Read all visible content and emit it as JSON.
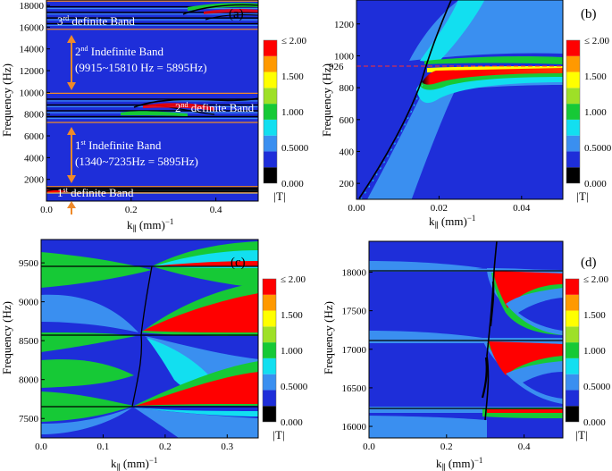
{
  "figure": {
    "colorbar": {
      "levels": [
        "≤ 2.00",
        "1.500",
        "1.000",
        "0.5000",
        "0.000"
      ],
      "unit": "|T|",
      "colors": [
        "#000000",
        "#1e2ed9",
        "#3a8ff0",
        "#12dff0",
        "#16c936",
        "#9ee027",
        "#ffff00",
        "#ff9900",
        "#ff0000"
      ]
    }
  },
  "chart_data": [
    {
      "type": "heatmap",
      "panel": "(a)",
      "xlabel": "k∥ (mm)⁻¹",
      "ylabel": "Frequency (Hz)",
      "xlim": [
        0,
        0.5
      ],
      "ylim": [
        0,
        18500
      ],
      "x_ticks": [
        "0.0",
        "0.2",
        "0.4"
      ],
      "y_ticks": [
        "2000",
        "4000",
        "6000",
        "8000",
        "10000",
        "12000",
        "14000",
        "16000",
        "18000"
      ],
      "bands": [
        {
          "kind": "definite",
          "freq": [
            750,
            1340
          ]
        },
        {
          "kind": "indefinite",
          "freq": [
            1340,
            7235
          ]
        },
        {
          "kind": "definite",
          "freq": [
            7235,
            9915
          ]
        },
        {
          "kind": "indefinite",
          "freq": [
            9915,
            15810
          ]
        },
        {
          "kind": "definite",
          "freq": [
            15810,
            18400
          ]
        }
      ],
      "annotations": [
        "3rd definite Band",
        "2nd Indefinite Band",
        "(9915~15810 Hz = 5895Hz)",
        "2nd definite Band",
        "1st Indefinite Band",
        "(1340~7235Hz = 5895Hz)",
        "1st definite Band"
      ]
    },
    {
      "type": "heatmap",
      "panel": "(b)",
      "xlabel": "k∥ (mm)⁻¹",
      "ylabel": "Frequency (Hz)",
      "xlim": [
        0,
        0.05
      ],
      "ylim": [
        100,
        1350
      ],
      "x_ticks": [
        "0.00",
        "0.02",
        "0.04"
      ],
      "y_ticks": [
        "200",
        "400",
        "600",
        "800",
        "1000",
        "1200"
      ],
      "resonance_freq": 926,
      "annotations": [
        "926"
      ]
    },
    {
      "type": "heatmap",
      "panel": "(c)",
      "xlabel": "k∥ (mm)⁻¹",
      "ylabel": "Frequency (Hz)",
      "xlim": [
        0,
        0.35
      ],
      "ylim": [
        7250,
        9800
      ],
      "x_ticks": [
        "0.0",
        "0.1",
        "0.2",
        "0.3"
      ],
      "y_ticks": [
        "7500",
        "8000",
        "8500",
        "9000",
        "9500"
      ]
    },
    {
      "type": "heatmap",
      "panel": "(d)",
      "xlabel": "k∥ (mm)⁻¹",
      "ylabel": "Frequency (Hz)",
      "xlim": [
        0,
        0.5
      ],
      "ylim": [
        15850,
        18400
      ],
      "x_ticks": [
        "0.0",
        "0.2",
        "0.4"
      ],
      "y_ticks": [
        "16000",
        "16500",
        "17000",
        "17500",
        "18000"
      ]
    }
  ]
}
